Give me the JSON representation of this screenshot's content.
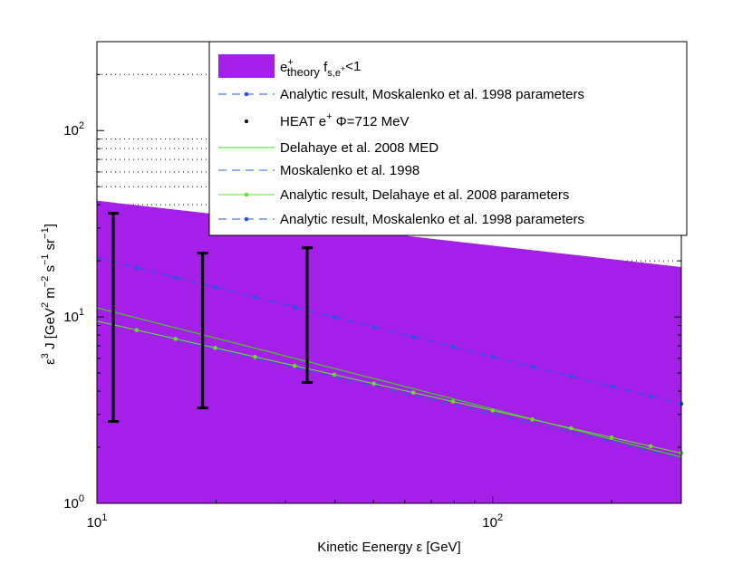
{
  "chart_data": {
    "type": "line",
    "title": "",
    "xlabel": "Kinetic Eenergy ε [GeV]",
    "ylabel": {
      "base": "ε",
      "sup1": "3",
      "mid": " J  [GeV",
      "sup2": "2",
      "mid2": " m",
      "sup3": "−2",
      "mid3": " s",
      "sup4": "−1",
      "mid4": " sr",
      "sup5": "−1",
      "end": "]"
    },
    "xscale": "log",
    "yscale": "log",
    "xlim": [
      10,
      300
    ],
    "ylim": [
      1,
      300
    ],
    "xticks": [
      {
        "value": 10,
        "base": "10",
        "exp": "1"
      },
      {
        "value": 100,
        "base": "10",
        "exp": "2"
      }
    ],
    "yticks": [
      {
        "value": 1,
        "base": "10",
        "exp": "0"
      },
      {
        "value": 10,
        "base": "10",
        "exp": "1"
      },
      {
        "value": 100,
        "base": "10",
        "exp": "2"
      }
    ],
    "band": {
      "name": "e+ theory f_s,e+ <1",
      "color": "#a41fe8",
      "x": [
        10,
        300
      ],
      "upper": [
        42,
        18.5
      ],
      "lower": [
        1,
        1
      ]
    },
    "series": [
      {
        "name": "Delahaye et al. 2008 MED",
        "kind": "line",
        "color": "#33dd11",
        "x": [
          10,
          300
        ],
        "y": [
          11.2,
          1.77
        ]
      },
      {
        "name": "Moskalenko et al. 1998",
        "kind": "dashed",
        "color": "#2060e0",
        "x": [
          10,
          300
        ],
        "y": [
          9.5,
          1.74
        ]
      },
      {
        "name": "Analytic result, Delahaye et al. 2008 parameters",
        "kind": "line-marker",
        "color": "#66dd33",
        "x": [
          10,
          300
        ],
        "y": [
          9.5,
          1.86
        ],
        "marker_x": [
          12.6,
          15.8,
          19.9,
          25.1,
          31.6,
          39.8,
          50.1,
          63.1,
          79.4,
          100,
          126,
          158,
          200,
          251,
          300
        ]
      },
      {
        "name": "Analytic result, Moskalenko et al. 1998 parameters",
        "kind": "dashed-marker",
        "color": "#2255ee",
        "x": [
          10,
          300
        ],
        "y": [
          20.8,
          3.42
        ],
        "marker_x": [
          12.6,
          15.8,
          19.9,
          25.1,
          31.6,
          39.8,
          50.1,
          63.1,
          79.4,
          100,
          126,
          158,
          200,
          251,
          300
        ]
      }
    ],
    "errorbars": {
      "name": "HEAT  e+ Φ=712 MeV",
      "color": "#000000",
      "points": [
        {
          "x": 11.0,
          "low": 2.75,
          "high": 36
        },
        {
          "x": 18.5,
          "low": 3.25,
          "high": 22
        },
        {
          "x": 34.0,
          "low": 4.45,
          "high": 23.5
        }
      ]
    },
    "legend": {
      "position": "top-right",
      "entries": [
        {
          "style": "patch",
          "color": "#a41fe8",
          "main": "e",
          "sup": "+",
          "sub": "theory",
          "tail": "  f",
          "tsub": "s,e",
          "tsubsup": "+",
          "end": "<1"
        },
        {
          "style": "dashed-marker",
          "color": "#2255ee",
          "text": "Analytic result, Moskalenko et al. 1998 parameters"
        },
        {
          "style": "dot",
          "color": "#000000",
          "main": "HEAT  e",
          "sup": "+",
          "tail": " Φ=712 MeV"
        },
        {
          "style": "line",
          "color": "#33dd11",
          "text": "Delahaye et al. 2008 MED"
        },
        {
          "style": "dashed",
          "color": "#2060e0",
          "text": "Moskalenko et al. 1998"
        },
        {
          "style": "line-marker",
          "color": "#66dd33",
          "text": "Analytic result, Delahaye et al. 2008 parameters"
        },
        {
          "style": "dashed-marker",
          "color": "#2255ee",
          "text": "Analytic result, Moskalenko et al. 1998 parameters"
        }
      ]
    }
  }
}
